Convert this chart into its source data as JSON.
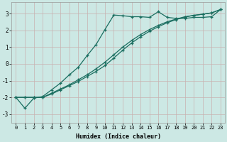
{
  "xlabel": "Humidex (Indice chaleur)",
  "ylabel": "",
  "bg_color": "#cce8e4",
  "grid_color": "#c8b0b0",
  "line_color": "#1a6e60",
  "x_values": [
    0,
    1,
    2,
    3,
    4,
    5,
    6,
    7,
    8,
    9,
    10,
    11,
    12,
    13,
    14,
    15,
    16,
    17,
    18,
    19,
    20,
    21,
    22,
    23
  ],
  "line1": [
    -2.0,
    -2.65,
    -2.05,
    -1.95,
    -1.55,
    -1.15,
    -0.65,
    -0.2,
    0.5,
    1.15,
    2.05,
    2.92,
    2.88,
    2.82,
    2.82,
    2.78,
    3.12,
    2.78,
    2.72,
    2.72,
    2.78,
    2.78,
    2.82,
    3.25
  ],
  "line2": [
    -2.0,
    -2.0,
    -2.0,
    -2.0,
    -1.75,
    -1.5,
    -1.25,
    -0.95,
    -0.65,
    -0.3,
    0.1,
    0.55,
    1.0,
    1.4,
    1.75,
    2.05,
    2.3,
    2.52,
    2.68,
    2.82,
    2.9,
    2.97,
    3.05,
    3.25
  ],
  "line3": [
    -2.0,
    -2.0,
    -2.0,
    -2.0,
    -1.8,
    -1.55,
    -1.3,
    -1.05,
    -0.75,
    -0.45,
    -0.1,
    0.35,
    0.82,
    1.25,
    1.62,
    1.95,
    2.22,
    2.46,
    2.65,
    2.8,
    2.9,
    2.97,
    3.05,
    3.25
  ],
  "ylim": [
    -3.5,
    3.7
  ],
  "xlim": [
    -0.5,
    23.5
  ],
  "yticks": [
    -3,
    -2,
    -1,
    0,
    1,
    2,
    3
  ],
  "xticks": [
    0,
    1,
    2,
    3,
    4,
    5,
    6,
    7,
    8,
    9,
    10,
    11,
    12,
    13,
    14,
    15,
    16,
    17,
    18,
    19,
    20,
    21,
    22,
    23
  ]
}
